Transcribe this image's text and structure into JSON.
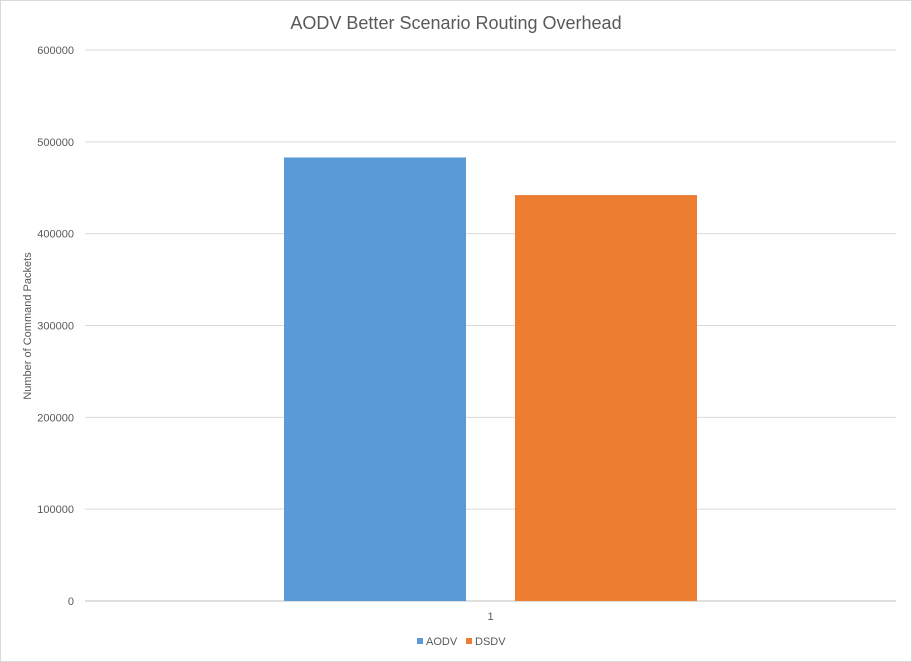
{
  "chart_data": {
    "type": "bar",
    "title": "AODV Better Scenario Routing Overhead",
    "xlabel": "",
    "ylabel": "Number  of Command Packets",
    "categories": [
      "1"
    ],
    "series": [
      {
        "name": "AODV",
        "color": "#5b9bd5",
        "values": [
          483000
        ]
      },
      {
        "name": "DSDV",
        "color": "#ed7d31",
        "values": [
          442000
        ]
      }
    ],
    "ylim": [
      0,
      600000
    ],
    "yticks": [
      "0",
      "100000",
      "200000",
      "300000",
      "400000",
      "500000",
      "600000"
    ],
    "grid": true,
    "legend_position": "bottom"
  }
}
